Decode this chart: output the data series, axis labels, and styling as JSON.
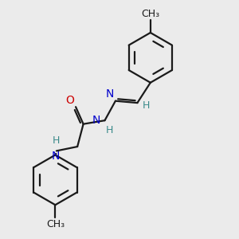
{
  "background_color": "#ebebeb",
  "bond_color": "#1a1a1a",
  "N_color": "#0000cc",
  "O_color": "#cc0000",
  "H_color": "#3a8a8a",
  "text_color": "#1a1a1a",
  "figsize": [
    3.0,
    3.0
  ],
  "dpi": 100,
  "xlim": [
    0,
    10
  ],
  "ylim": [
    0,
    10
  ]
}
